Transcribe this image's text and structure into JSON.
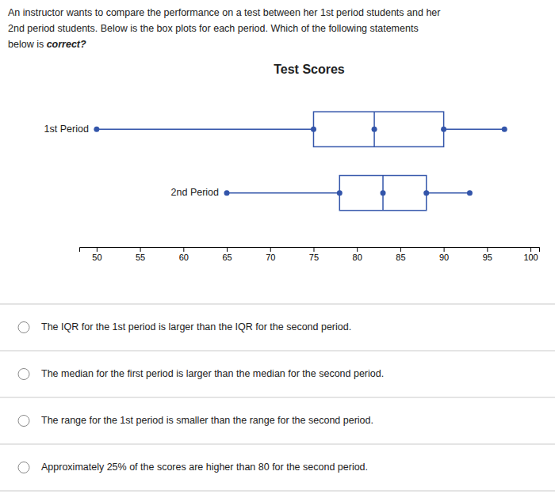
{
  "chart_data": {
    "type": "box",
    "title": "Test Scores",
    "subtitle": [
      "An instructor wants to compare the performance on a test between her 1st period students and her",
      "2nd period students.  Below is the box plots for each period.  Which of the following statements",
      "below is ",
      "correct?"
    ],
    "categories": [
      "1st Period",
      "2nd Period"
    ],
    "values": [
      {
        "min": 50,
        "q1": 75,
        "median": 82,
        "q3": 90,
        "max": 97
      },
      {
        "min": 65,
        "q1": 78,
        "median": 83,
        "q3": 88,
        "max": 93
      }
    ],
    "color": "#3355AA",
    "xlim": [
      48,
      101
    ],
    "xticks": [
      50,
      55,
      60,
      65,
      70,
      75,
      80,
      85,
      90,
      95,
      100
    ],
    "annotations": [
      "The IQR for the 1st period is larger than the IQR for the second period.",
      "The median for the first period is larger than the median for the second period.",
      "The range for the 1st period is smaller than the range for the second period.",
      "Approximately 25% of the scores are higher than 80 for the second period."
    ]
  }
}
